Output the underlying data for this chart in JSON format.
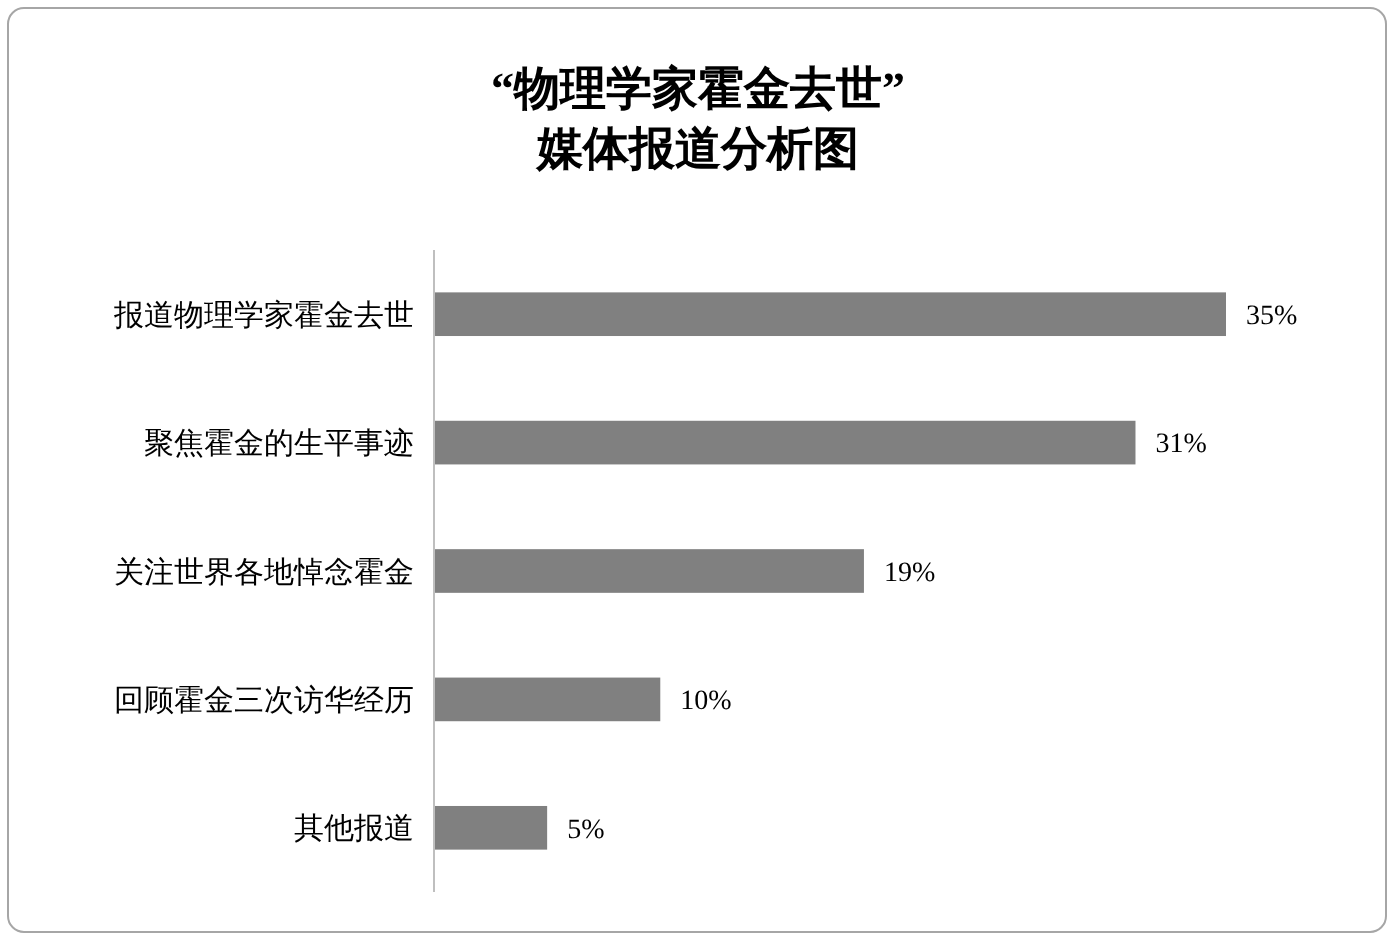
{
  "chart_data": {
    "type": "bar",
    "orientation": "horizontal",
    "title": "“物理学家霍金去世”\n媒体报道分析图",
    "categories": [
      "报道物理学家霍金去世",
      "聚焦霍金的生平事迹",
      "关注世界各地悼念霍金",
      "回顾霍金三次访华经历",
      "其他报道"
    ],
    "values": [
      35,
      31,
      19,
      10,
      5
    ],
    "color": "#808080",
    "value_labels": [
      "35%",
      "31%",
      "19%",
      "10%",
      "5%"
    ],
    "tick_labels": "y"
  }
}
